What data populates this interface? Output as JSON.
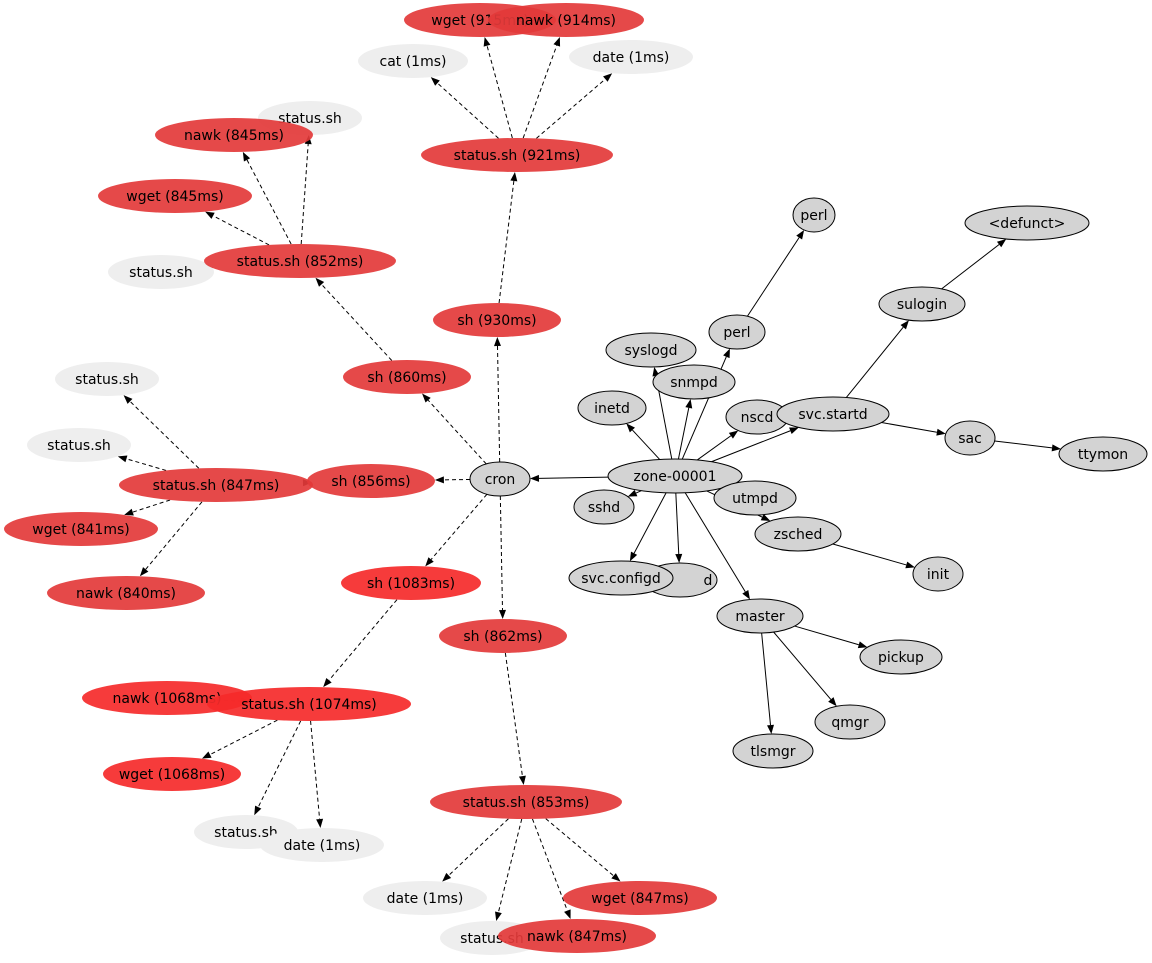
{
  "colors": {
    "red": "#e33a3a",
    "bright_red": "#f52a2a",
    "light": "#eeeeee",
    "grey": "#d3d3d3"
  },
  "nodes": [
    {
      "id": "wget915",
      "label": "wget (915ms)",
      "kind": "red"
    },
    {
      "id": "nawk914",
      "label": "nawk (914ms)",
      "kind": "red"
    },
    {
      "id": "cat1",
      "label": "cat (1ms)",
      "kind": "light"
    },
    {
      "id": "date1a",
      "label": "date (1ms)",
      "kind": "light"
    },
    {
      "id": "status921",
      "label": "status.sh (921ms)",
      "kind": "red"
    },
    {
      "id": "ssa",
      "label": "status.sh",
      "kind": "light"
    },
    {
      "id": "nawk845",
      "label": "nawk (845ms)",
      "kind": "red"
    },
    {
      "id": "wget845",
      "label": "wget (845ms)",
      "kind": "red"
    },
    {
      "id": "ssb",
      "label": "status.sh",
      "kind": "light"
    },
    {
      "id": "status852",
      "label": "status.sh (852ms)",
      "kind": "red"
    },
    {
      "id": "sh930",
      "label": "sh (930ms)",
      "kind": "red"
    },
    {
      "id": "sh860",
      "label": "sh (860ms)",
      "kind": "red"
    },
    {
      "id": "ssc",
      "label": "status.sh",
      "kind": "light"
    },
    {
      "id": "ssd",
      "label": "status.sh",
      "kind": "light"
    },
    {
      "id": "status847",
      "label": "status.sh (847ms)",
      "kind": "red"
    },
    {
      "id": "sh856",
      "label": "sh (856ms)",
      "kind": "red"
    },
    {
      "id": "cron",
      "label": "cron",
      "kind": "grey"
    },
    {
      "id": "wget841",
      "label": "wget (841ms)",
      "kind": "red"
    },
    {
      "id": "nawk840",
      "label": "nawk (840ms)",
      "kind": "red"
    },
    {
      "id": "sh1083",
      "label": "sh (1083ms)",
      "kind": "bright_red"
    },
    {
      "id": "sh862",
      "label": "sh (862ms)",
      "kind": "red"
    },
    {
      "id": "nawk1068",
      "label": "nawk (1068ms)",
      "kind": "bright_red"
    },
    {
      "id": "status1074",
      "label": "status.sh (1074ms)",
      "kind": "bright_red"
    },
    {
      "id": "wget1068",
      "label": "wget (1068ms)",
      "kind": "bright_red"
    },
    {
      "id": "sse",
      "label": "status.sh",
      "kind": "light"
    },
    {
      "id": "date1b",
      "label": "date (1ms)",
      "kind": "light"
    },
    {
      "id": "status853",
      "label": "status.sh (853ms)",
      "kind": "red"
    },
    {
      "id": "date1c",
      "label": "date (1ms)",
      "kind": "light"
    },
    {
      "id": "wget847",
      "label": "wget (847ms)",
      "kind": "red"
    },
    {
      "id": "ssf",
      "label": "status.sh",
      "kind": "light"
    },
    {
      "id": "nawk847",
      "label": "nawk (847ms)",
      "kind": "red"
    },
    {
      "id": "perl2",
      "label": "perl",
      "kind": "grey"
    },
    {
      "id": "defunct",
      "label": "<defunct>",
      "kind": "grey"
    },
    {
      "id": "sulogin",
      "label": "sulogin",
      "kind": "grey"
    },
    {
      "id": "perl",
      "label": "perl",
      "kind": "grey"
    },
    {
      "id": "syslogd",
      "label": "syslogd",
      "kind": "grey"
    },
    {
      "id": "snmpd",
      "label": "snmpd",
      "kind": "grey"
    },
    {
      "id": "inetd",
      "label": "inetd",
      "kind": "grey"
    },
    {
      "id": "nscd",
      "label": "nscd",
      "kind": "grey"
    },
    {
      "id": "svcstartd",
      "label": "svc.startd",
      "kind": "grey"
    },
    {
      "id": "sac",
      "label": "sac",
      "kind": "grey"
    },
    {
      "id": "ttymon",
      "label": "ttymon",
      "kind": "grey"
    },
    {
      "id": "zone",
      "label": "zone-00001",
      "kind": "grey"
    },
    {
      "id": "sshd",
      "label": "sshd",
      "kind": "grey"
    },
    {
      "id": "utmpd",
      "label": "utmpd",
      "kind": "grey"
    },
    {
      "id": "zsched",
      "label": "zsched",
      "kind": "grey"
    },
    {
      "id": "hiddend",
      "label": "d",
      "kind": "grey"
    },
    {
      "id": "svcconfigd",
      "label": "svc.configd",
      "kind": "grey"
    },
    {
      "id": "init",
      "label": "init",
      "kind": "grey"
    },
    {
      "id": "master",
      "label": "master",
      "kind": "grey"
    },
    {
      "id": "pickup",
      "label": "pickup",
      "kind": "grey"
    },
    {
      "id": "qmgr",
      "label": "qmgr",
      "kind": "grey"
    },
    {
      "id": "tlsmgr",
      "label": "tlsmgr",
      "kind": "grey"
    }
  ],
  "edges": [
    [
      "zone",
      "cron"
    ],
    [
      "cron",
      "sh856"
    ],
    [
      "cron",
      "sh860"
    ],
    [
      "cron",
      "sh930"
    ],
    [
      "cron",
      "sh1083"
    ],
    [
      "cron",
      "sh862"
    ],
    [
      "sh930",
      "status921"
    ],
    [
      "status921",
      "wget915"
    ],
    [
      "status921",
      "nawk914"
    ],
    [
      "status921",
      "cat1"
    ],
    [
      "status921",
      "date1a"
    ],
    [
      "sh860",
      "status852"
    ],
    [
      "status852",
      "nawk845"
    ],
    [
      "status852",
      "ssa"
    ],
    [
      "status852",
      "wget845"
    ],
    [
      "status852",
      "ssb"
    ],
    [
      "sh856",
      "status847"
    ],
    [
      "status847",
      "ssc"
    ],
    [
      "status847",
      "ssd"
    ],
    [
      "status847",
      "wget841"
    ],
    [
      "status847",
      "nawk840"
    ],
    [
      "sh1083",
      "status1074"
    ],
    [
      "status1074",
      "nawk1068"
    ],
    [
      "status1074",
      "wget1068"
    ],
    [
      "status1074",
      "sse"
    ],
    [
      "status1074",
      "date1b"
    ],
    [
      "sh862",
      "status853"
    ],
    [
      "status853",
      "date1c"
    ],
    [
      "status853",
      "ssf"
    ],
    [
      "status853",
      "nawk847"
    ],
    [
      "status853",
      "wget847"
    ],
    [
      "zone",
      "syslogd"
    ],
    [
      "zone",
      "snmpd"
    ],
    [
      "zone",
      "perl"
    ],
    [
      "zone",
      "nscd"
    ],
    [
      "zone",
      "svcstartd"
    ],
    [
      "zone",
      "inetd"
    ],
    [
      "zone",
      "sshd"
    ],
    [
      "zone",
      "utmpd"
    ],
    [
      "zone",
      "zsched"
    ],
    [
      "zone",
      "svcconfigd"
    ],
    [
      "zone",
      "hiddend"
    ],
    [
      "zone",
      "master"
    ],
    [
      "perl",
      "perl2"
    ],
    [
      "svcstartd",
      "sulogin"
    ],
    [
      "svcstartd",
      "sac"
    ],
    [
      "sulogin",
      "defunct"
    ],
    [
      "sac",
      "ttymon"
    ],
    [
      "zsched",
      "init"
    ],
    [
      "master",
      "pickup"
    ],
    [
      "master",
      "qmgr"
    ],
    [
      "master",
      "tlsmgr"
    ]
  ]
}
